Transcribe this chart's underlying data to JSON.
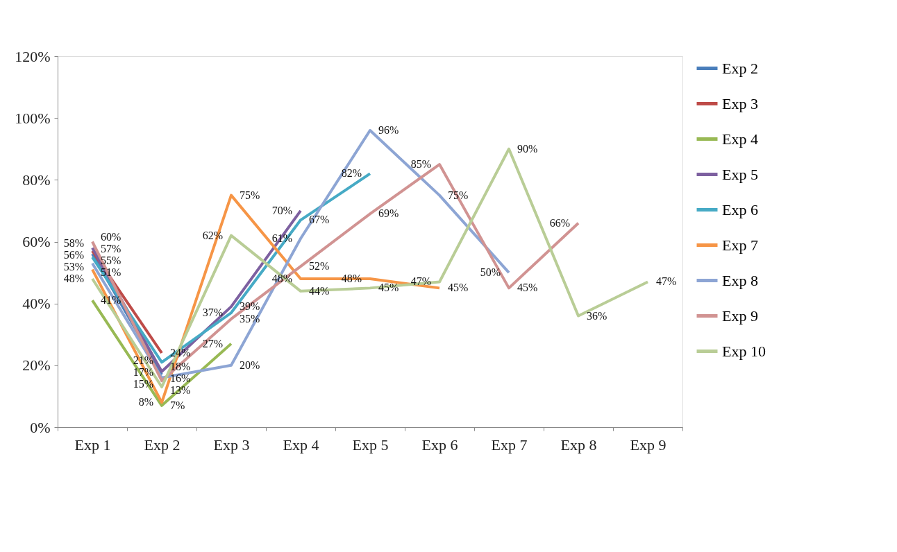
{
  "chart_data": {
    "type": "line",
    "categories": [
      "Exp 1",
      "Exp 2",
      "Exp 3",
      "Exp 4",
      "Exp 5",
      "Exp 6",
      "Exp 7",
      "Exp 8",
      "Exp 9"
    ],
    "ylim": [
      0,
      120
    ],
    "yticks": [
      {
        "value": 0,
        "label": "0%"
      },
      {
        "value": 20,
        "label": "20%"
      },
      {
        "value": 40,
        "label": "40%"
      },
      {
        "value": 60,
        "label": "60%"
      },
      {
        "value": 80,
        "label": "80%"
      },
      {
        "value": 100,
        "label": "100%"
      },
      {
        "value": 120,
        "label": "120%"
      }
    ],
    "grid": false,
    "legend": "right",
    "marker": "none",
    "line_style": "solid",
    "series": [
      {
        "name": "Exp 2",
        "color": "#4a7ebb",
        "values": [
          56,
          17,
          null,
          null,
          null,
          null,
          null,
          null,
          null
        ],
        "value_labels": [
          "56%",
          "17%",
          null,
          null,
          null,
          null,
          null,
          null,
          null
        ]
      },
      {
        "name": "Exp 3",
        "color": "#be4b48",
        "values": [
          57,
          24,
          null,
          null,
          null,
          null,
          null,
          null,
          null
        ],
        "value_labels": [
          "57%",
          "24%",
          null,
          null,
          null,
          null,
          null,
          null,
          null
        ]
      },
      {
        "name": "Exp 4",
        "color": "#98b954",
        "values": [
          41,
          7,
          27,
          null,
          null,
          null,
          null,
          null,
          null
        ],
        "value_labels": [
          "41%",
          "7%",
          "27%",
          null,
          null,
          null,
          null,
          null,
          null
        ]
      },
      {
        "name": "Exp 5",
        "color": "#7d60a0",
        "values": [
          58,
          18,
          39,
          70,
          null,
          null,
          null,
          null,
          null
        ],
        "value_labels": [
          "58%",
          "18%",
          "39%",
          "70%",
          null,
          null,
          null,
          null,
          null
        ]
      },
      {
        "name": "Exp 6",
        "color": "#46aac5",
        "values": [
          55,
          21,
          37,
          67,
          82,
          null,
          null,
          null,
          null
        ],
        "value_labels": [
          "55%",
          "21%",
          "37%",
          "67%",
          "82%",
          null,
          null,
          null,
          null
        ]
      },
      {
        "name": "Exp 7",
        "color": "#f69546",
        "values": [
          51,
          8,
          75,
          48,
          48,
          45,
          null,
          null,
          null
        ],
        "value_labels": [
          "51%",
          "8%",
          "75%",
          "48%",
          "48%",
          "45%",
          null,
          null,
          null
        ]
      },
      {
        "name": "Exp 8",
        "color": "#8da5d4",
        "values": [
          53,
          16,
          20,
          61,
          96,
          75,
          50,
          null,
          null
        ],
        "value_labels": [
          "53%",
          "16%",
          "20%",
          "61%",
          "96%",
          "75%",
          "50%",
          null,
          null
        ]
      },
      {
        "name": "Exp 9",
        "color": "#d19392",
        "values": [
          60,
          15,
          35,
          52,
          69,
          85,
          45,
          66,
          null
        ],
        "value_labels": [
          "60%",
          "15%",
          "35%",
          "52%",
          "69%",
          "85%",
          "45%",
          "66%",
          null
        ]
      },
      {
        "name": "Exp 10",
        "color": "#b9cd96",
        "values": [
          48,
          13,
          62,
          44,
          45,
          47,
          90,
          36,
          47
        ],
        "value_labels": [
          "48%",
          "13%",
          "62%",
          "44%",
          "45%",
          "47%",
          "90%",
          "36%",
          "47%"
        ]
      }
    ]
  }
}
